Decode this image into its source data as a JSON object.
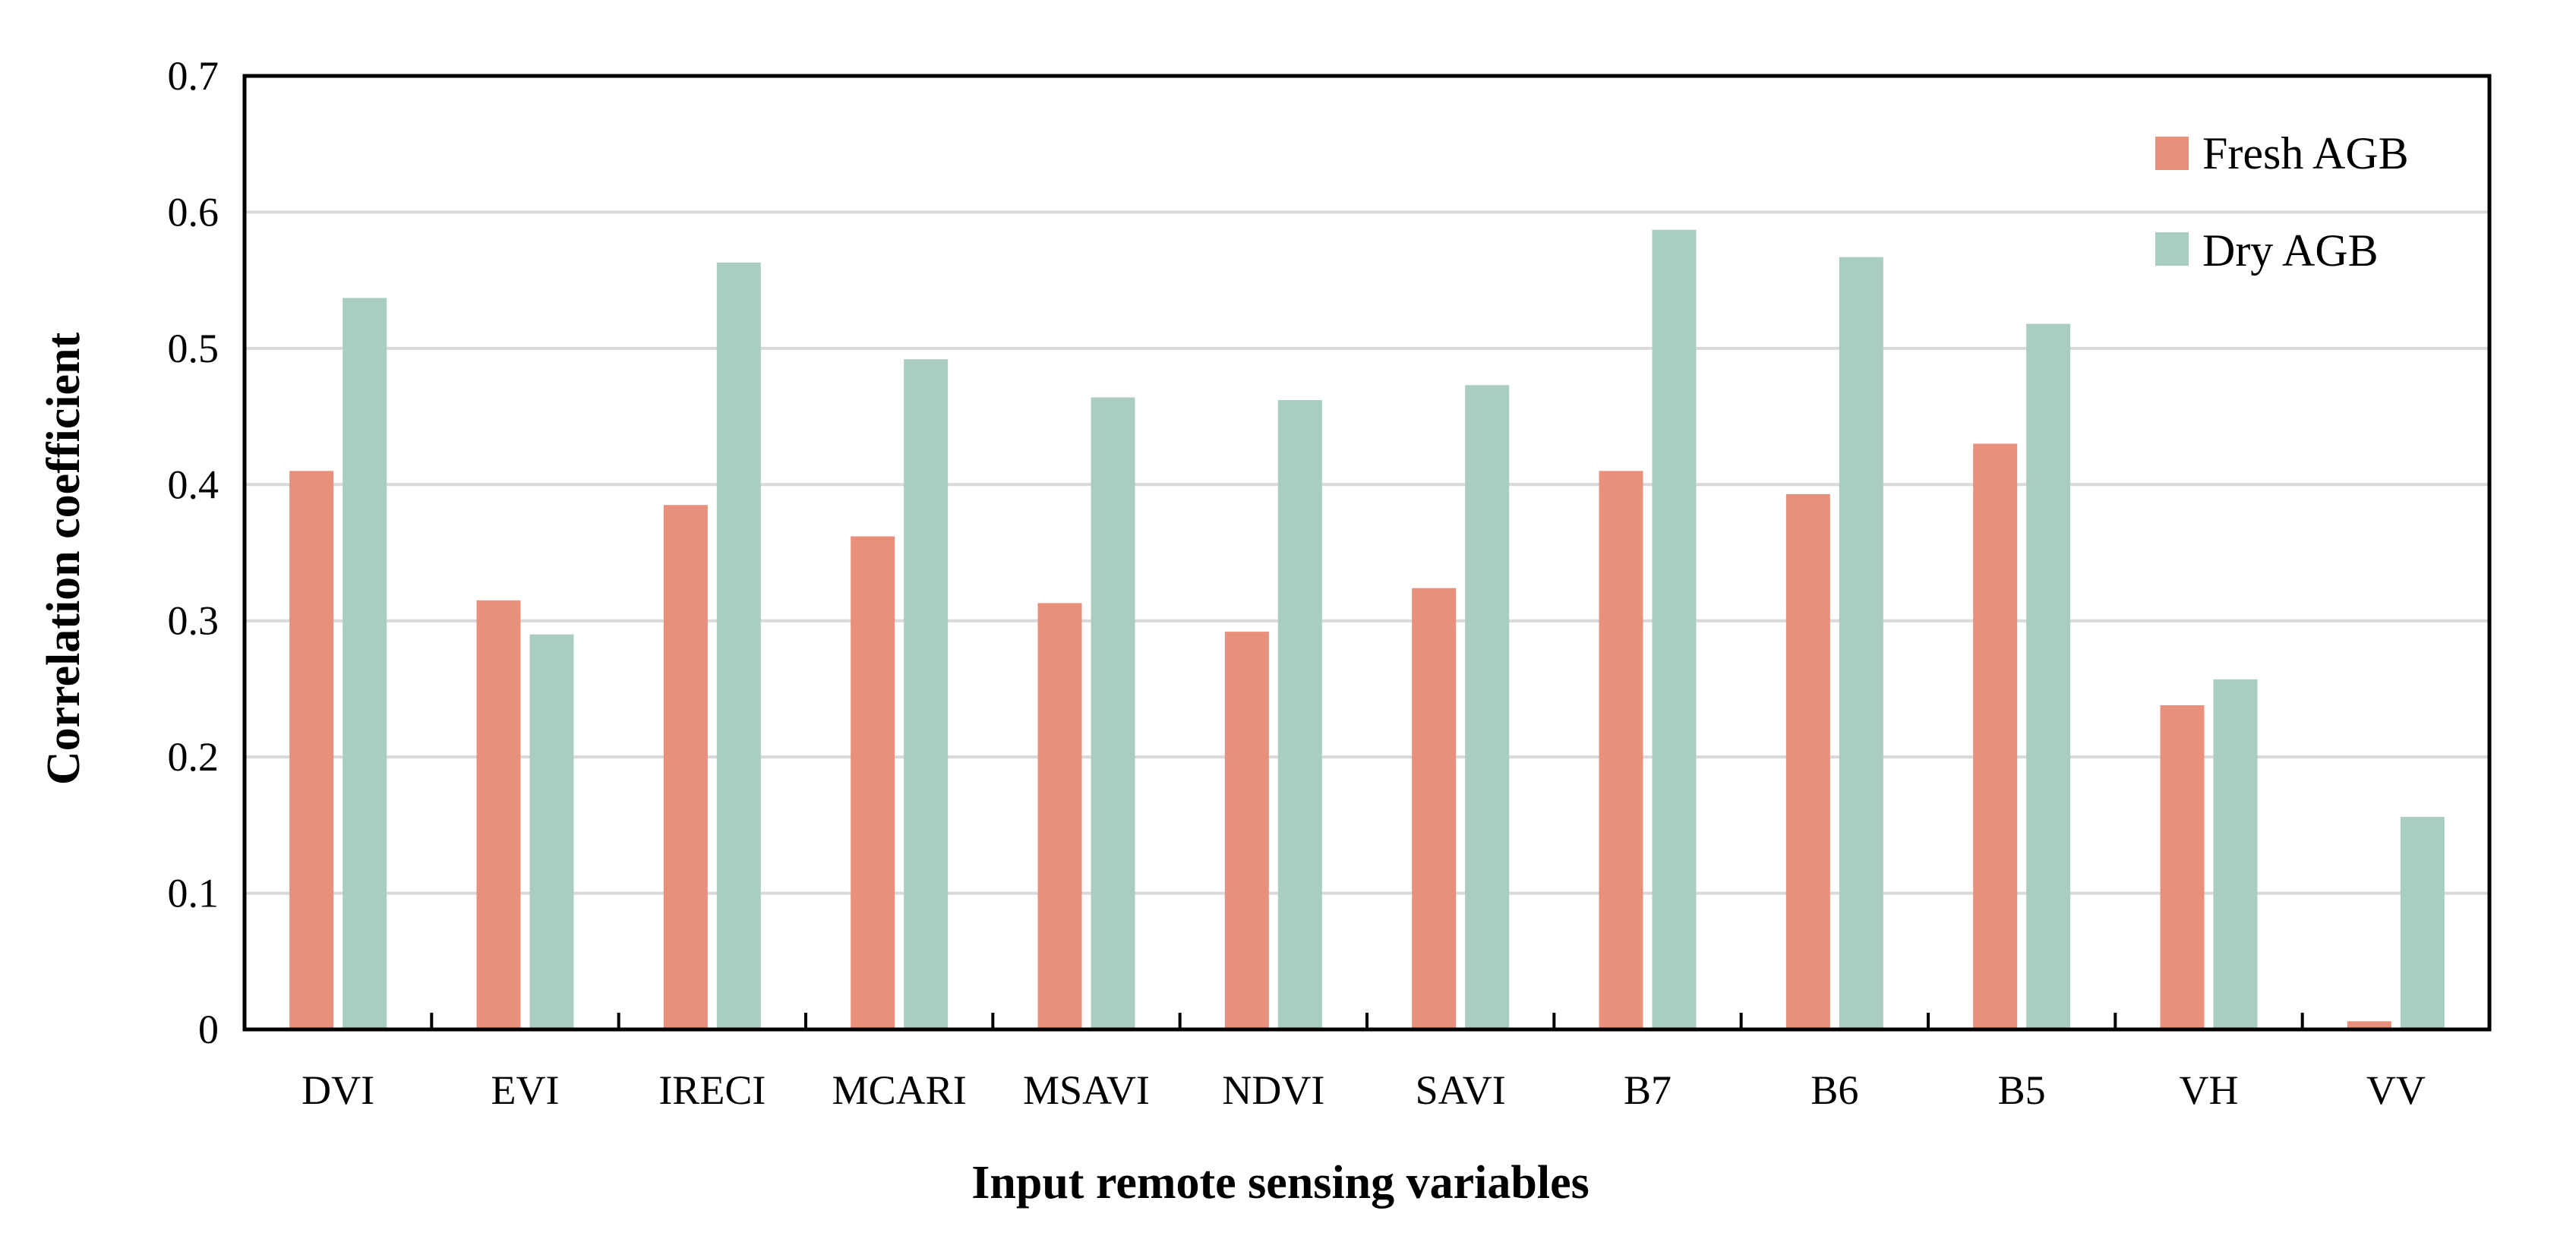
{
  "chart_data": {
    "type": "bar",
    "title": "",
    "xlabel": "Input remote sensing variables",
    "ylabel": "Correlation coefficient",
    "ylim": [
      0,
      0.7
    ],
    "yticks": [
      0,
      0.1,
      0.2,
      0.3,
      0.4,
      0.5,
      0.6,
      0.7
    ],
    "ytick_labels": [
      "0",
      "0.1",
      "0.2",
      "0.3",
      "0.4",
      "0.5",
      "0.6",
      "0.7"
    ],
    "grid": true,
    "legend_position": "top-right",
    "categories": [
      "DVI",
      "EVI",
      "IRECI",
      "MCARI",
      "MSAVI",
      "NDVI",
      "SAVI",
      "B7",
      "B6",
      "B5",
      "VH",
      "VV"
    ],
    "series": [
      {
        "name": "Fresh AGB",
        "color": "#E9907C",
        "values": [
          0.41,
          0.315,
          0.385,
          0.362,
          0.313,
          0.292,
          0.324,
          0.41,
          0.393,
          0.43,
          0.238,
          0.006
        ]
      },
      {
        "name": "Dry AGB",
        "color": "#A9CDBE",
        "values": [
          0.537,
          0.29,
          0.563,
          0.492,
          0.464,
          0.462,
          0.473,
          0.587,
          0.567,
          0.518,
          0.257,
          0.156
        ]
      }
    ]
  }
}
